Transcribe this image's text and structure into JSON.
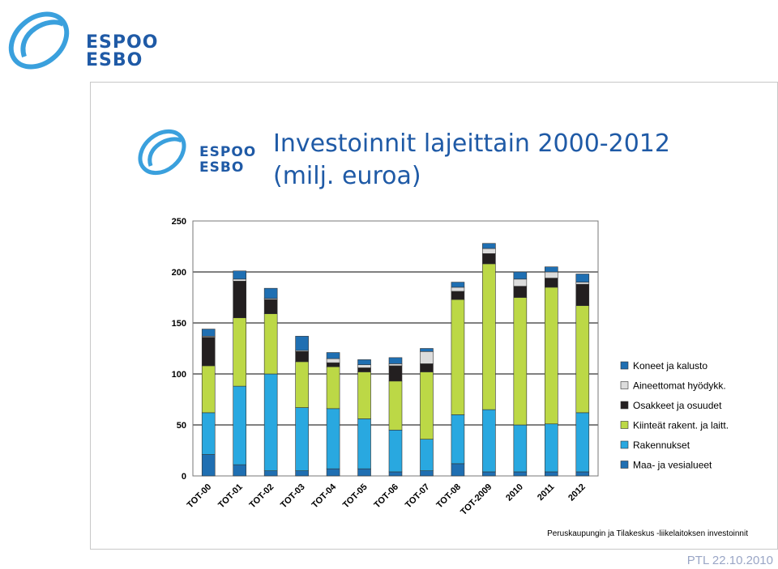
{
  "header": {
    "logo_line1": "ESPOO",
    "logo_line2": "ESBO"
  },
  "slide": {
    "logo_line1": "ESPOO",
    "logo_line2": "ESBO",
    "title_line1": "Investoinnit lajeittain 2000-2012",
    "title_line2": "(milj. euroa)"
  },
  "footer": {
    "text": "PTL 22.10.2010"
  },
  "colors": {
    "brand_blue": "#1f5aa6",
    "logo_ring": "#3aa0dd"
  },
  "chart_data": {
    "type": "bar",
    "stacked": true,
    "categories": [
      "TOT-00",
      "TOT-01",
      "TOT-02",
      "TOT-03",
      "TOT-04",
      "TOT-05",
      "TOT-06",
      "TOT-07",
      "TOT-08",
      "TOT-2009",
      "2010",
      "2011",
      "2012"
    ],
    "ylim": [
      0,
      250
    ],
    "yticks": [
      0,
      50,
      100,
      150,
      200,
      250
    ],
    "grid": true,
    "legend_position": "right",
    "series": [
      {
        "name": "Maa- ja vesialueet",
        "color": "#1f6fb2",
        "values": [
          21,
          11,
          5,
          5,
          7,
          7,
          4,
          5,
          12,
          4,
          4,
          4,
          4
        ]
      },
      {
        "name": "Rakennukset",
        "color": "#29a8e0",
        "values": [
          41,
          77,
          95,
          62,
          59,
          49,
          41,
          31,
          48,
          61,
          46,
          47,
          58
        ]
      },
      {
        "name": "Kiinteät rakent. ja laitt.",
        "color": "#bcd846",
        "values": [
          46,
          67,
          59,
          45,
          41,
          46,
          48,
          66,
          113,
          143,
          125,
          134,
          105
        ]
      },
      {
        "name": "Osakkeet ja osuudet",
        "color": "#231f20",
        "values": [
          28,
          36,
          14,
          10,
          4,
          4,
          15,
          8,
          8,
          10,
          11,
          9,
          21
        ]
      },
      {
        "name": "Aineettomat hyödykk.",
        "color": "#dcdcdc",
        "values": [
          1,
          2,
          1,
          1,
          4,
          3,
          2,
          12,
          4,
          5,
          7,
          6,
          2
        ]
      },
      {
        "name": "Koneet ja kalusto",
        "color": "#1f6fb2",
        "values": [
          7,
          8,
          10,
          14,
          6,
          5,
          6,
          3,
          5,
          5,
          7,
          5,
          8
        ]
      }
    ],
    "legend_order": [
      "Koneet ja kalusto",
      "Aineettomat hyödykk.",
      "Osakkeet ja osuudet",
      "Kiinteät rakent. ja laitt.",
      "Rakennukset",
      "Maa- ja vesialueet"
    ],
    "footnote": "Peruskaupungin ja Tilakeskus -liikelaitoksen investoinnit"
  }
}
